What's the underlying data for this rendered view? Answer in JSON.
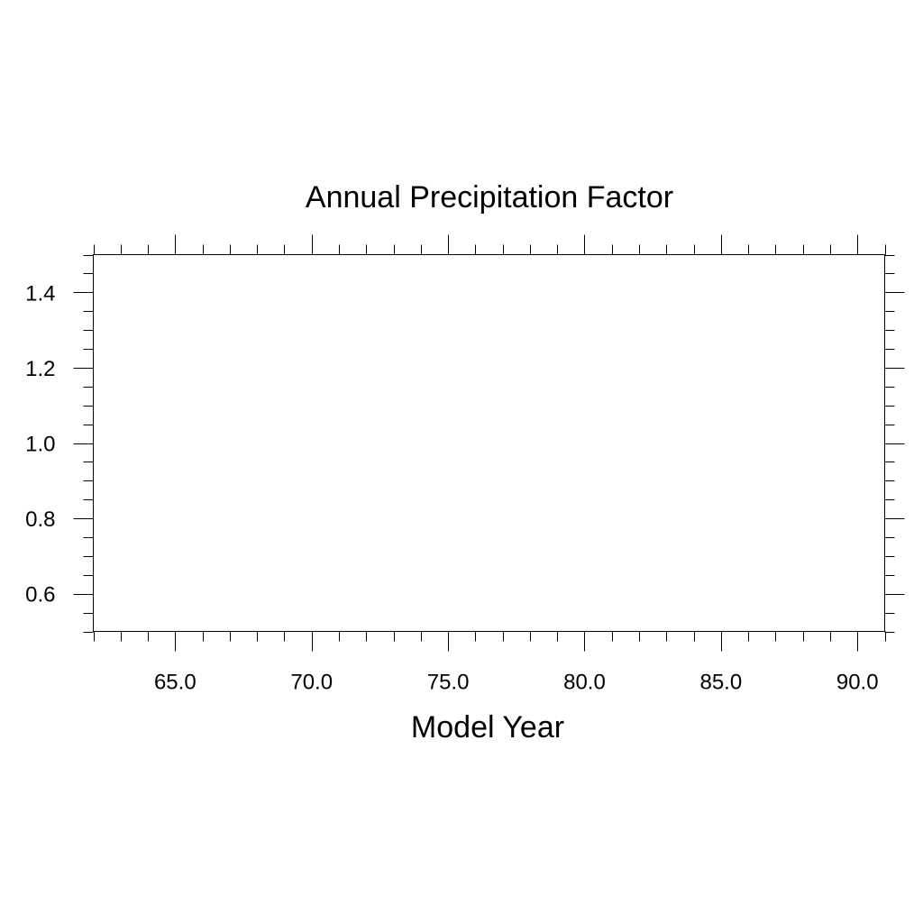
{
  "chart_data": {
    "type": "line",
    "title": "Annual Precipitation Factor",
    "xlabel": "Model Year",
    "ylabel": "",
    "xlim": [
      62.0,
      91.0
    ],
    "ylim": [
      0.5,
      1.5
    ],
    "x_major_ticks": [
      65.0,
      70.0,
      75.0,
      80.0,
      85.0,
      90.0
    ],
    "x_tick_labels": [
      "65.0",
      "70.0",
      "75.0",
      "80.0",
      "85.0",
      "90.0"
    ],
    "x_minor_step": 1.0,
    "y_major_ticks": [
      0.6,
      0.8,
      1.0,
      1.2,
      1.4
    ],
    "y_tick_labels": [
      "0.6",
      "0.8",
      "1.0",
      "1.2",
      "1.4"
    ],
    "y_minor_step": 0.05,
    "grid": false,
    "series": []
  }
}
